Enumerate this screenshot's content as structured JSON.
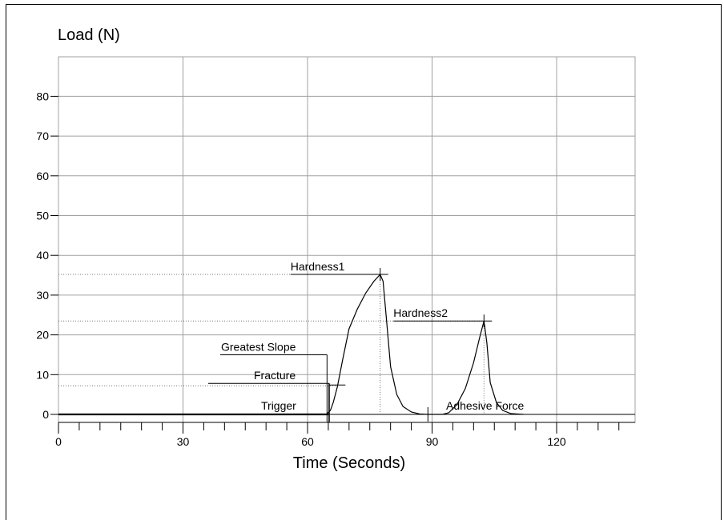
{
  "chart_data": {
    "type": "line",
    "title": "",
    "ylabel": "Load (N)",
    "xlabel": "Time (Seconds)",
    "xlim": [
      0,
      138
    ],
    "ylim": [
      -2,
      90
    ],
    "x_ticks": [
      0,
      30,
      60,
      90,
      120
    ],
    "y_ticks": [
      0,
      10,
      20,
      30,
      40,
      50,
      60,
      70,
      80
    ],
    "x_tick_labels": [
      "0",
      "30",
      "60",
      "90",
      "120"
    ],
    "y_tick_labels": [
      "0",
      "10",
      "20",
      "30",
      "40",
      "50",
      "60",
      "70",
      "80"
    ],
    "grid": true,
    "series": [
      {
        "x": [
          0,
          20,
          40,
          60,
          64.5,
          65.5,
          66.2,
          67.2,
          68.5,
          70,
          72,
          74,
          76,
          77.5,
          78.2,
          79,
          80,
          81.5,
          83,
          85,
          87,
          89,
          91,
          92.5,
          94,
          96,
          98,
          100,
          101.5,
          102.5,
          103.2,
          104,
          105.5,
          107,
          109,
          112
        ],
        "y": [
          0,
          0,
          0,
          0,
          0,
          1,
          3,
          7,
          14,
          21.5,
          26.5,
          30.5,
          33.5,
          35.2,
          33.5,
          24,
          12,
          5,
          2,
          0.6,
          0.1,
          0,
          0,
          0,
          0.4,
          2.5,
          6.5,
          13,
          19.5,
          23.5,
          18,
          8,
          3,
          1,
          0.2,
          0
        ]
      }
    ],
    "annotations": [
      {
        "label": "Hardness1",
        "x": 77.5,
        "y": 35.2
      },
      {
        "label": "Hardness2",
        "x": 102.5,
        "y": 23.5
      },
      {
        "label": "Greatest Slope",
        "x": 67.2,
        "y": 15
      },
      {
        "label": "Fracture",
        "x": 65.5,
        "y": 7.2
      },
      {
        "label": "Trigger",
        "x": 65,
        "y": 0
      },
      {
        "label": "Adhesive Force",
        "x": 89,
        "y": 0
      }
    ]
  }
}
